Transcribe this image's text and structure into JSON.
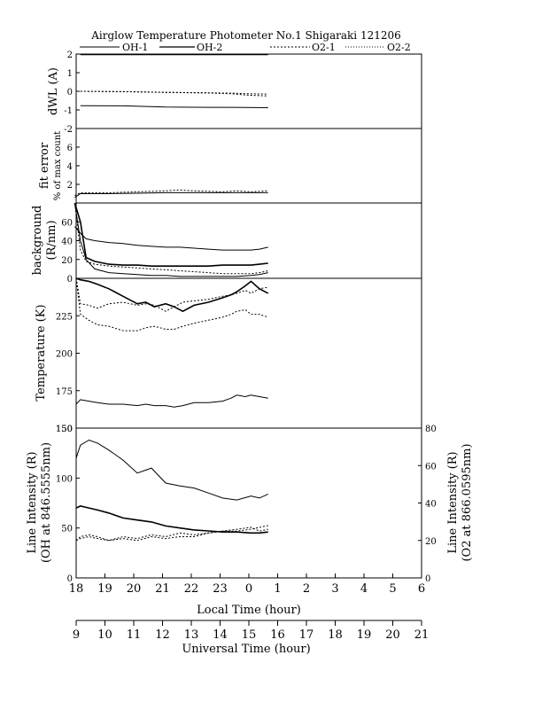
{
  "title": "Airglow Temperature Photometer No.1   Shigaraki   121206",
  "legend": [
    {
      "label": "OH-1",
      "style": "solid"
    },
    {
      "label": "OH-2",
      "style": "solid"
    },
    {
      "label": "O2-1",
      "style": "dotted"
    },
    {
      "label": "O2-2",
      "style": "dotted"
    }
  ],
  "local_time_ticks": [
    "18",
    "19",
    "20",
    "21",
    "22",
    "23",
    "0",
    "1",
    "2",
    "3",
    "4",
    "5",
    "6"
  ],
  "ut_ticks": [
    "9",
    "10",
    "11",
    "12",
    "13",
    "14",
    "15",
    "16",
    "17",
    "18",
    "19",
    "20",
    "21"
  ],
  "local_time_label": "Local Time (hour)",
  "ut_label": "Universal Time (hour)",
  "chart_data": [
    {
      "type": "line",
      "name": "dwl",
      "ylabel": "dWL (A)",
      "ylim": [
        -2,
        2
      ],
      "ytick_labels": [
        "-2",
        "-1",
        "0",
        "1",
        "2"
      ],
      "x": [
        18.0,
        19.5,
        21.0,
        22.5,
        23.3,
        23.8,
        24.6
      ],
      "series": [
        {
          "name": "OH-1",
          "style": "solid",
          "values": [
            -0.77,
            -0.78,
            -0.85,
            -0.86,
            -0.86,
            -0.87,
            -0.88
          ]
        },
        {
          "name": "OH-2",
          "style": "solid",
          "values": [
            1.98,
            1.98,
            1.98,
            1.98,
            1.98,
            1.98,
            1.98
          ]
        },
        {
          "name": "O2-1",
          "style": "dotted",
          "values": [
            0.0,
            -0.02,
            -0.05,
            -0.08,
            -0.1,
            -0.13,
            -0.15
          ]
        },
        {
          "name": "O2-2",
          "style": "dotted",
          "values": [
            0.0,
            -0.02,
            -0.06,
            -0.09,
            -0.13,
            -0.2,
            -0.25
          ]
        }
      ]
    },
    {
      "type": "line",
      "name": "fit-error",
      "ylabel": "fit error",
      "ylabel2": "% of max count",
      "ylim": [
        0,
        8
      ],
      "ytick_labels": [
        "2",
        "4",
        "6"
      ],
      "x": [
        17.8,
        18.0,
        19.0,
        20.0,
        21.0,
        21.5,
        22.0,
        23.0,
        23.5,
        24.0,
        24.6
      ],
      "series": [
        {
          "name": "OH-1",
          "style": "solid",
          "values": [
            0.6,
            1.0,
            1.0,
            1.05,
            1.1,
            1.1,
            1.1,
            1.1,
            1.1,
            1.1,
            1.1
          ]
        },
        {
          "name": "O2-1",
          "style": "dotted",
          "values": [
            0.8,
            1.1,
            1.1,
            1.2,
            1.3,
            1.4,
            1.3,
            1.2,
            1.3,
            1.2,
            1.3
          ]
        }
      ]
    },
    {
      "type": "line",
      "name": "background",
      "ylabel": "background",
      "ylabel2": "(R/nm)",
      "ylim": [
        0,
        80
      ],
      "ytick_labels": [
        "0",
        "20",
        "40",
        "60"
      ],
      "x": [
        17.8,
        18.0,
        18.2,
        18.5,
        19.0,
        19.5,
        20.0,
        20.5,
        21.0,
        21.5,
        22.0,
        22.5,
        23.0,
        23.5,
        24.0,
        24.3,
        24.6
      ],
      "series": [
        {
          "name": "OH-1",
          "style": "solid",
          "values": [
            55,
            48,
            42,
            40,
            38,
            37,
            35,
            34,
            33,
            33,
            32,
            31,
            30,
            30,
            30,
            31,
            33
          ]
        },
        {
          "name": "OH-2",
          "style": "solid",
          "values": [
            80,
            60,
            22,
            18,
            15,
            14,
            14,
            13,
            13,
            13,
            13,
            13,
            14,
            14,
            14,
            15,
            16
          ]
        },
        {
          "name": "O2-1",
          "style": "dotted",
          "values": [
            80,
            30,
            18,
            15,
            13,
            12,
            11,
            10,
            9,
            8,
            7,
            6,
            5,
            5,
            5,
            6,
            8
          ]
        },
        {
          "name": "O2-2",
          "style": "solid",
          "values": [
            80,
            40,
            20,
            10,
            6,
            5,
            4,
            3,
            3,
            2,
            2,
            2,
            2,
            2,
            3,
            4,
            6
          ]
        }
      ]
    },
    {
      "type": "line",
      "name": "temperature",
      "ylabel": "Temperature (K)",
      "ylim": [
        150,
        250
      ],
      "ytick_labels": [
        "150",
        "175",
        "200",
        "225"
      ],
      "x": [
        17.85,
        18.0,
        18.3,
        18.6,
        19.0,
        19.5,
        20.0,
        20.3,
        20.6,
        21.0,
        21.3,
        21.6,
        22.0,
        22.5,
        23.0,
        23.3,
        23.5,
        23.8,
        24.0,
        24.3,
        24.6
      ],
      "series": [
        {
          "name": "OH-1",
          "style": "solid",
          "values": [
            166,
            169,
            168,
            167,
            166,
            166,
            165,
            166,
            165,
            165,
            164,
            165,
            167,
            167,
            168,
            170,
            172,
            171,
            172,
            171,
            170
          ]
        },
        {
          "name": "OH-2",
          "style": "solid",
          "values": [
            250,
            249,
            248,
            246,
            243,
            238,
            233,
            234,
            231,
            233,
            231,
            228,
            232,
            234,
            237,
            239,
            241,
            245,
            248,
            243,
            240
          ]
        },
        {
          "name": "O2-1",
          "style": "dotted",
          "values": [
            250,
            226,
            222,
            219,
            218,
            215,
            215,
            217,
            218,
            216,
            216,
            218,
            220,
            222,
            224,
            226,
            228,
            229,
            226,
            226,
            224
          ]
        },
        {
          "name": "O2-2",
          "style": "dotted",
          "values": [
            250,
            233,
            232,
            230,
            233,
            234,
            232,
            233,
            232,
            228,
            231,
            234,
            235,
            236,
            238,
            239,
            240,
            242,
            240,
            243,
            244
          ]
        }
      ]
    },
    {
      "type": "line",
      "name": "line-intensity",
      "ylabel": "Line Intensity (R)",
      "ylabel2": "(OH at 846.5555nm)",
      "y2label": "Line Intensity (R)",
      "y2label2": "(O2 at 866.0595nm)",
      "ylim": [
        0,
        150
      ],
      "y2lim": [
        0,
        80
      ],
      "ytick_labels": [
        "0",
        "50",
        "100",
        "150"
      ],
      "y2tick_labels": [
        "0",
        "20",
        "40",
        "60",
        "80"
      ],
      "x": [
        17.85,
        18.0,
        18.3,
        18.6,
        19.0,
        19.5,
        20.0,
        20.5,
        21.0,
        21.5,
        22.0,
        22.5,
        23.0,
        23.5,
        24.0,
        24.3,
        24.6
      ],
      "series": [
        {
          "name": "OH-1",
          "style": "solid",
          "axis": "left",
          "values": [
            120,
            133,
            138,
            135,
            128,
            118,
            105,
            110,
            95,
            92,
            90,
            85,
            80,
            78,
            82,
            80,
            84
          ]
        },
        {
          "name": "OH-2",
          "style": "solid",
          "axis": "left",
          "values": [
            70,
            72,
            70,
            68,
            65,
            60,
            58,
            56,
            52,
            50,
            48,
            47,
            46,
            46,
            45,
            45,
            46
          ]
        },
        {
          "name": "O2-1",
          "style": "dotted",
          "axis": "right",
          "values": [
            20,
            21,
            22,
            21,
            20,
            22,
            21,
            23,
            22,
            24,
            23,
            24,
            25,
            26,
            27,
            25,
            26
          ]
        },
        {
          "name": "O2-2",
          "style": "dotted",
          "axis": "right",
          "values": [
            20,
            22,
            23,
            22,
            20,
            21,
            20,
            22,
            21,
            22,
            22,
            24,
            25,
            25,
            26,
            27,
            28
          ]
        }
      ]
    }
  ]
}
